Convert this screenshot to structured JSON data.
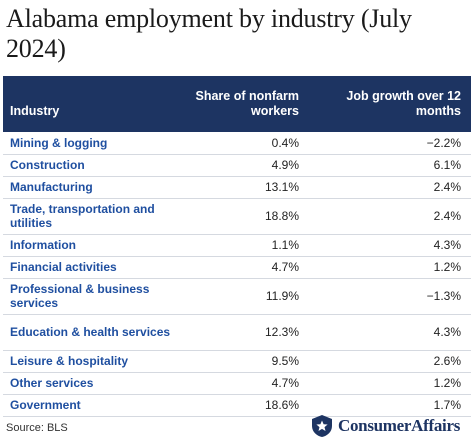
{
  "title": "Alabama employment by industry (July 2024)",
  "table": {
    "headers": [
      "Industry",
      "Share of nonfarm workers",
      "Job growth over 12 months"
    ],
    "rows": [
      {
        "industry": "Mining & logging",
        "share": "0.4%",
        "growth": "−2.2%"
      },
      {
        "industry": "Construction",
        "share": "4.9%",
        "growth": "6.1%"
      },
      {
        "industry": "Manufacturing",
        "share": "13.1%",
        "growth": "2.4%"
      },
      {
        "industry": "Trade, transportation and utilities",
        "share": "18.8%",
        "growth": "2.4%"
      },
      {
        "industry": "Information",
        "share": "1.1%",
        "growth": "4.3%"
      },
      {
        "industry": "Financial activities",
        "share": "4.7%",
        "growth": "1.2%"
      },
      {
        "industry": "Professional & business services",
        "share": "11.9%",
        "growth": "−1.3%"
      },
      {
        "industry": "Education & health services",
        "share": "12.3%",
        "growth": "4.3%"
      },
      {
        "industry": "Leisure & hospitality",
        "share": "9.5%",
        "growth": "2.6%"
      },
      {
        "industry": "Other services",
        "share": "4.7%",
        "growth": "1.2%"
      },
      {
        "industry": "Government",
        "share": "18.6%",
        "growth": "1.7%"
      }
    ]
  },
  "source": "Source: BLS",
  "brand": {
    "name": "ConsumerAffairs",
    "icon": "shield-star-icon",
    "color": "#1d3462"
  },
  "colors": {
    "header_bg": "#1d3462",
    "industry_text": "#1f4fa0"
  }
}
